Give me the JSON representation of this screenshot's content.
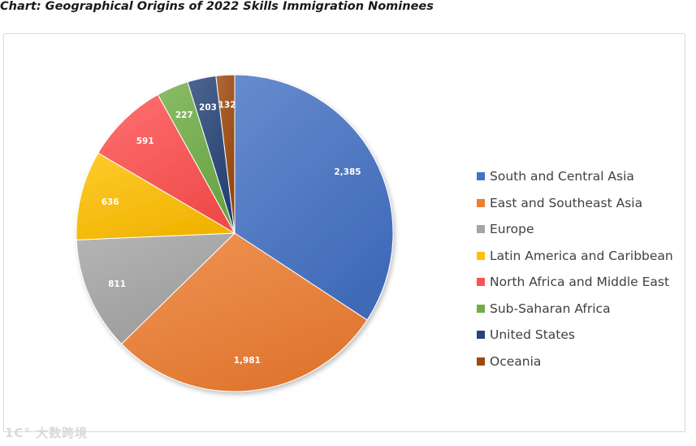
{
  "chart_data": {
    "type": "pie",
    "title": "Chart: Geographical Origins of 2022 Skills Immigration Nominees",
    "categories": [
      "South and Central Asia",
      "East and Southeast Asia",
      "Europe",
      "Latin America and Caribbean",
      "North Africa and Middle East",
      "Sub-Saharan Africa",
      "United States",
      "Oceania"
    ],
    "values": [
      2385,
      1981,
      811,
      636,
      591,
      227,
      203,
      132
    ],
    "labels": [
      "2,385",
      "1,981",
      "811",
      "636",
      "591",
      "227",
      "203",
      "132"
    ],
    "colors": [
      "#4472c4",
      "#ed7d31",
      "#a5a5a5",
      "#ffc000",
      "#ff5050",
      "#70ad47",
      "#264478",
      "#9e480e"
    ],
    "start_angle": "12 o'clock",
    "direction": "clockwise",
    "legend_position": "right"
  },
  "watermark": "1C° 大数跨境"
}
